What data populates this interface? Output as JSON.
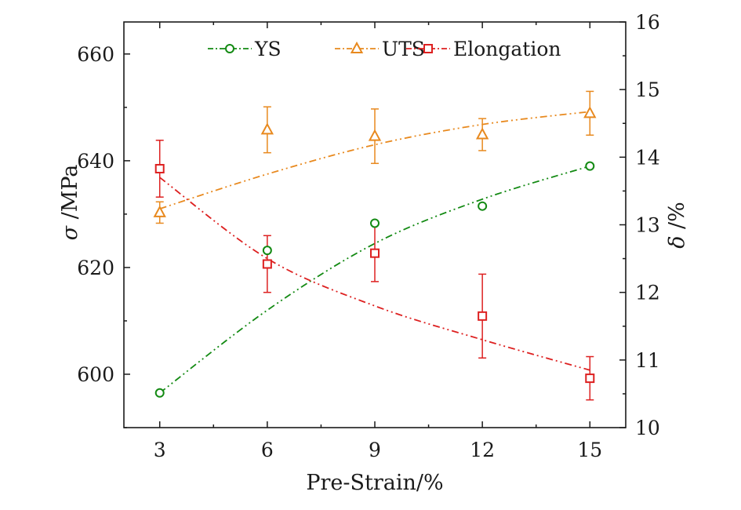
{
  "chart_data": {
    "type": "line",
    "x": [
      3,
      6,
      9,
      12,
      15
    ],
    "xlabel": "Pre-Strain/%",
    "xlim": [
      2,
      16
    ],
    "xticks": [
      3,
      6,
      9,
      12,
      15
    ],
    "ylabel_symbol": "σ",
    "ylabel_unit": " /MPa",
    "ylim": [
      590,
      666
    ],
    "yticks": [
      600,
      620,
      640,
      660
    ],
    "y2label_symbol": "δ",
    "y2label_unit": " /%",
    "y2lim": [
      10,
      16
    ],
    "y2ticks": [
      10,
      11,
      12,
      13,
      14,
      15,
      16
    ],
    "grid": false,
    "legend_position": "top",
    "series": [
      {
        "name": "YS",
        "axis": "left",
        "marker": "circle",
        "color": "#138a13",
        "values": [
          596.5,
          623.2,
          628.3,
          631.5,
          639.0
        ],
        "fit": [
          596.5,
          612.0,
          624.5,
          632.8,
          639.0
        ]
      },
      {
        "name": "UTS",
        "axis": "left",
        "marker": "triangle",
        "color": "#e8891e",
        "values": [
          630.3,
          645.8,
          644.6,
          644.9,
          648.9
        ],
        "error": [
          2.0,
          4.3,
          5.1,
          3.0,
          4.1
        ],
        "fit": [
          631.0,
          637.5,
          643.0,
          646.8,
          649.2
        ]
      },
      {
        "name": "Elongation",
        "axis": "right",
        "marker": "square",
        "color": "#dd2020",
        "values": [
          13.83,
          12.42,
          12.58,
          11.65,
          10.73
        ],
        "error": [
          0.42,
          0.42,
          0.42,
          0.62,
          0.32
        ],
        "fit": [
          13.7,
          12.5,
          11.8,
          11.3,
          10.85
        ]
      }
    ]
  }
}
